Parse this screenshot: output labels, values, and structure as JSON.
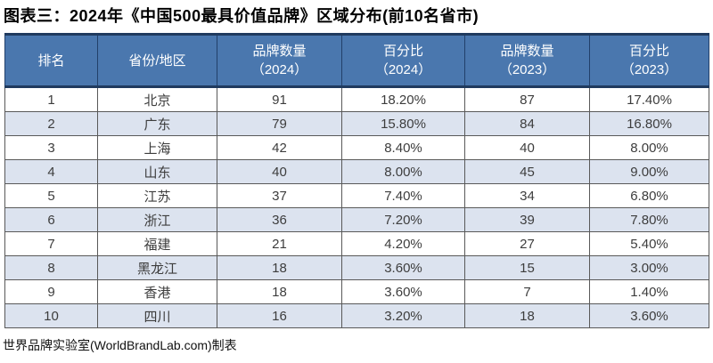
{
  "chart_data": {
    "type": "table",
    "title": "图表三：2024年《中国500最具价值品牌》区域分布(前10名省市)",
    "source": "世界品牌实验室(WorldBrandLab.com)制表",
    "columns": [
      "排名",
      "省份/地区",
      "品牌数量\n（2024）",
      "百分比\n（2024）",
      "品牌数量\n（2023）",
      "百分比\n（2023）"
    ],
    "rows": [
      [
        "1",
        "北京",
        "91",
        "18.20%",
        "87",
        "17.40%"
      ],
      [
        "2",
        "广东",
        "79",
        "15.80%",
        "84",
        "16.80%"
      ],
      [
        "3",
        "上海",
        "42",
        "8.40%",
        "40",
        "8.00%"
      ],
      [
        "4",
        "山东",
        "40",
        "8.00%",
        "45",
        "9.00%"
      ],
      [
        "5",
        "江苏",
        "37",
        "7.40%",
        "34",
        "6.80%"
      ],
      [
        "6",
        "浙江",
        "36",
        "7.20%",
        "39",
        "7.80%"
      ],
      [
        "7",
        "福建",
        "21",
        "4.20%",
        "27",
        "5.40%"
      ],
      [
        "8",
        "黑龙江",
        "18",
        "3.60%",
        "15",
        "3.00%"
      ],
      [
        "9",
        "香港",
        "18",
        "3.60%",
        "7",
        "1.40%"
      ],
      [
        "10",
        "四川",
        "16",
        "3.20%",
        "18",
        "3.60%"
      ]
    ],
    "layout": {
      "legend": "none",
      "grid": "on"
    }
  },
  "colors": {
    "header_bg": "#4a77ae",
    "header_text": "#ffffff",
    "header_accent": "#1f3a5e",
    "row_bg": "#ffffff",
    "row_alt_bg": "#dce3ef",
    "grid_line": "#595959",
    "body_text": "#3d3d3d",
    "title_text": "#000000"
  }
}
